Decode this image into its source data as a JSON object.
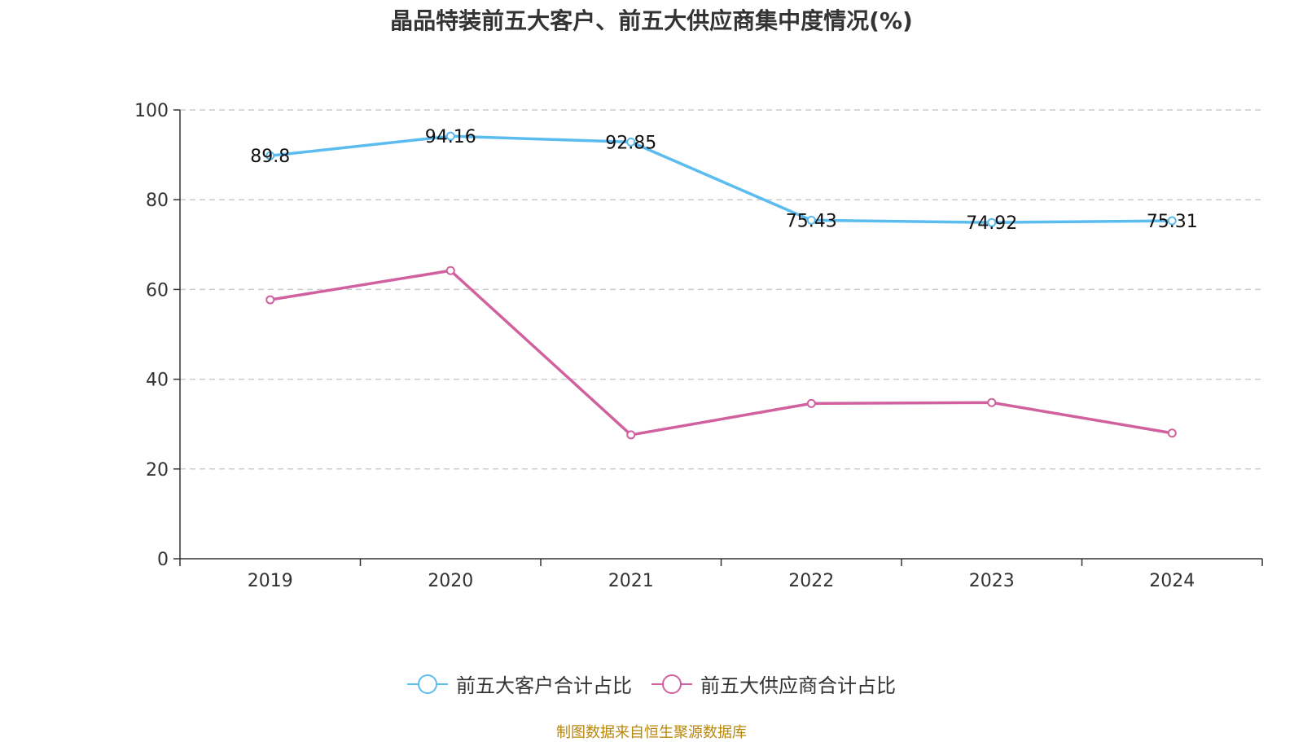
{
  "chart_data": {
    "type": "line",
    "title": "晶品特装前五大客户、前五大供应商集中度情况(%)",
    "categories": [
      "2019",
      "2020",
      "2021",
      "2022",
      "2023",
      "2024"
    ],
    "ylim": [
      0,
      100
    ],
    "yticks": [
      0,
      20,
      40,
      60,
      80,
      100
    ],
    "grid": true,
    "legend_position": "bottom",
    "series": [
      {
        "name": "前五大客户合计占比",
        "color": "#5bbcf0",
        "values": [
          89.8,
          94.16,
          92.85,
          75.43,
          74.92,
          75.31
        ],
        "labels": [
          "89.8",
          "94.16",
          "92.85",
          "75.43",
          "74.92",
          "75.31"
        ]
      },
      {
        "name": "前五大供应商合计占比",
        "color": "#d1609f",
        "values": [
          57.7,
          64.2,
          27.6,
          34.6,
          34.8,
          28.0
        ],
        "labels": []
      }
    ]
  },
  "source_note": "制图数据来自恒生聚源数据库"
}
